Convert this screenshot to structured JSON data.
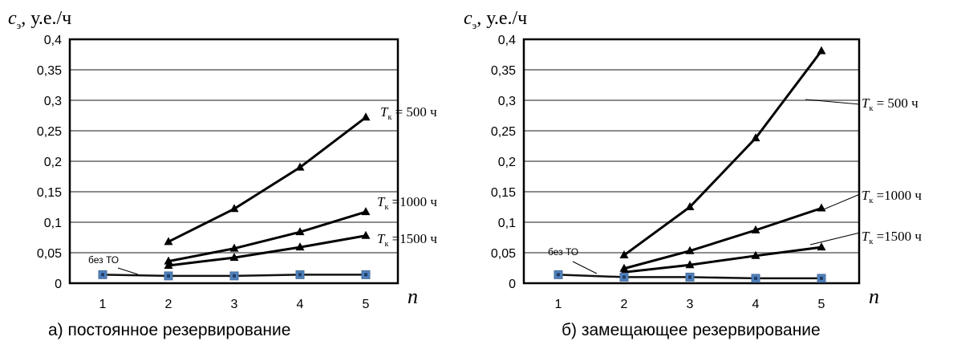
{
  "chart_data": [
    {
      "type": "line",
      "caption": "а) постоянное резервирование",
      "ylabel_symbol": "c",
      "ylabel_sub": "э",
      "ylabel_unit": ", у.е./ч",
      "xlabel": "n",
      "x": [
        1,
        2,
        3,
        4,
        5
      ],
      "ylim": [
        0,
        0.4
      ],
      "yticks": [
        "0",
        "0,05",
        "0,1",
        "0,15",
        "0,2",
        "0,25",
        "0,3",
        "0,35",
        "0,4"
      ],
      "grid": true,
      "series": [
        {
          "name_main": "T",
          "name_sub": "к",
          "name_rest": " = 500 ч",
          "x": [
            2,
            3,
            4,
            5
          ],
          "values": [
            0.068,
            0.122,
            0.19,
            0.272
          ],
          "marker": "triangle"
        },
        {
          "name_main": "T",
          "name_sub": "к",
          "name_rest": " =1000 ч",
          "x": [
            2,
            3,
            4,
            5
          ],
          "values": [
            0.036,
            0.057,
            0.084,
            0.117
          ],
          "marker": "triangle"
        },
        {
          "name_main": "T",
          "name_sub": "к",
          "name_rest": " =1500 ч",
          "x": [
            2,
            3,
            4,
            5
          ],
          "values": [
            0.029,
            0.042,
            0.059,
            0.078
          ],
          "marker": "triangle"
        },
        {
          "name": "без ТО",
          "x": [
            1,
            2,
            3,
            4,
            5
          ],
          "values": [
            0.014,
            0.012,
            0.012,
            0.014,
            0.014
          ],
          "marker": "square"
        }
      ]
    },
    {
      "type": "line",
      "caption": "б) замещающее резервирование",
      "ylabel_symbol": "c",
      "ylabel_sub": "э",
      "ylabel_unit": ", у.е./ч",
      "xlabel": "n",
      "x": [
        1,
        2,
        3,
        4,
        5
      ],
      "ylim": [
        0,
        0.4
      ],
      "yticks": [
        "0",
        "0,05",
        "0,1",
        "0,15",
        "0,2",
        "0,25",
        "0,3",
        "0,35",
        "0,4"
      ],
      "grid": true,
      "series": [
        {
          "name_main": "T",
          "name_sub": "к",
          "name_rest": " = 500 ч",
          "x": [
            2,
            3,
            4,
            5
          ],
          "values": [
            0.046,
            0.125,
            0.238,
            0.381
          ],
          "marker": "triangle"
        },
        {
          "name_main": "T",
          "name_sub": "к",
          "name_rest": " =1000 ч",
          "x": [
            2,
            3,
            4,
            5
          ],
          "values": [
            0.024,
            0.053,
            0.087,
            0.123
          ],
          "marker": "triangle"
        },
        {
          "name_main": "T",
          "name_sub": "к",
          "name_rest": " =1500 ч",
          "x": [
            2,
            3,
            4,
            5
          ],
          "values": [
            0.018,
            0.03,
            0.045,
            0.059
          ],
          "marker": "triangle"
        },
        {
          "name": "без ТО",
          "x": [
            1,
            2,
            3,
            4,
            5
          ],
          "values": [
            0.014,
            0.01,
            0.01,
            0.008,
            0.008
          ],
          "marker": "square"
        }
      ]
    }
  ]
}
